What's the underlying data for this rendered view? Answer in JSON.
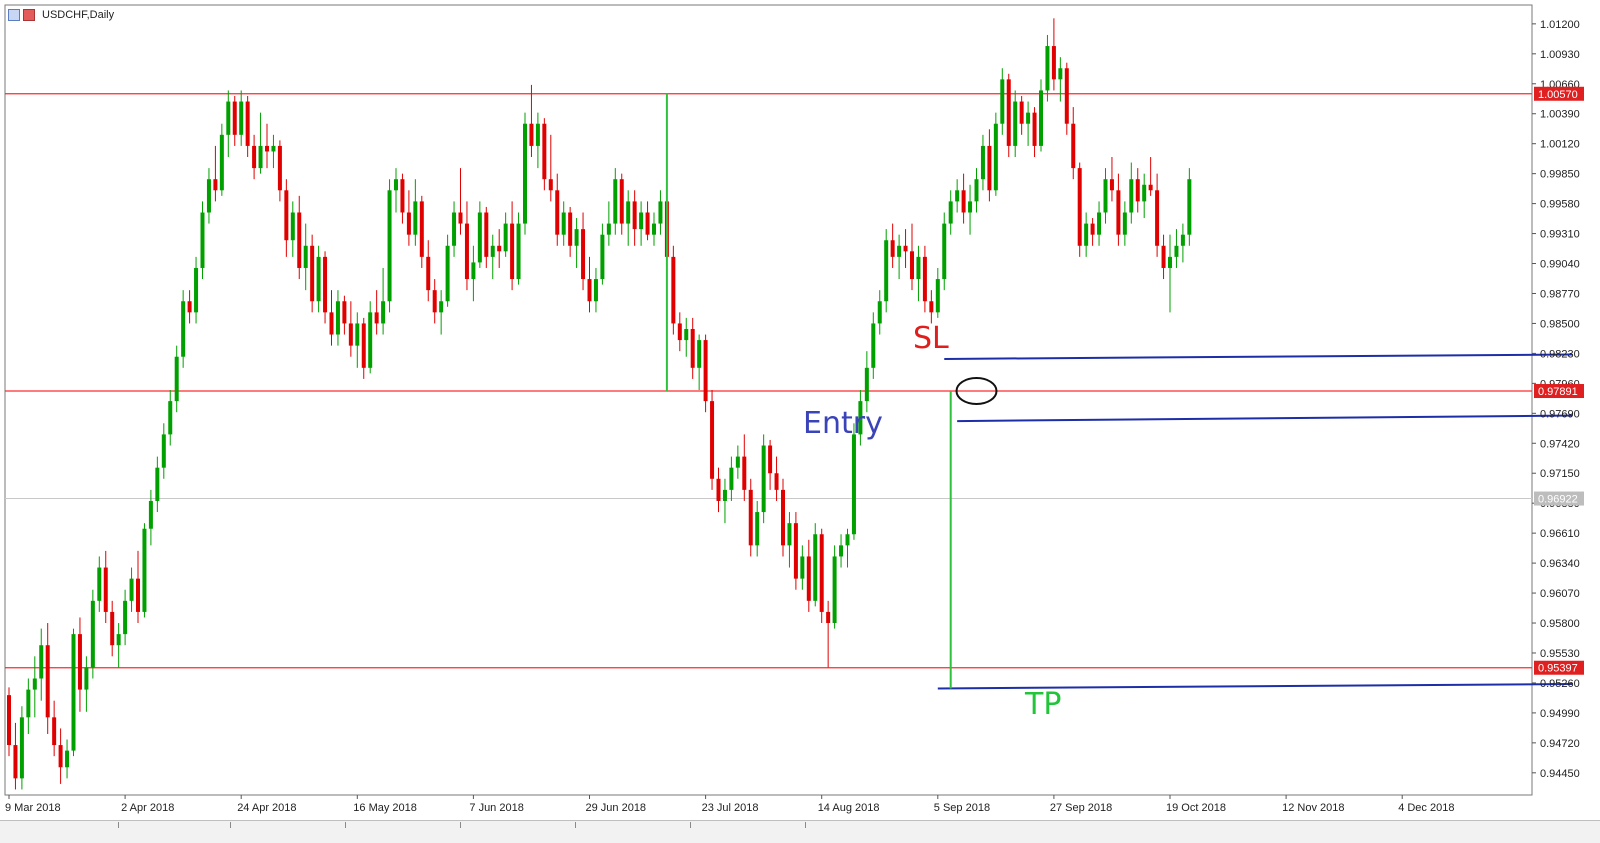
{
  "window": {
    "title": "USDCHF,Daily"
  },
  "icons": [
    "chart-icon",
    "bars-icon"
  ],
  "colors": {
    "bull": "#00a000",
    "bear": "#e00000",
    "level_line": "#ff2a2a",
    "trend_line": "#1c2ea8",
    "vline": "#2ec23c",
    "sl_text": "#e01e1e",
    "entry_text": "#3a44b8",
    "tp_text": "#22c43a"
  },
  "annotations": {
    "sl": "SL",
    "entry": "Entry",
    "tp": "TP"
  },
  "chart_data": {
    "type": "candlestick",
    "title": "USDCHF,Daily",
    "xlabel": "",
    "ylabel": "",
    "x_tick_labels": [
      "9 Mar 2018",
      "2 Apr 2018",
      "24 Apr 2018",
      "16 May 2018",
      "7 Jun 2018",
      "29 Jun 2018",
      "23 Jul 2018",
      "14 Aug 2018",
      "5 Sep 2018",
      "27 Sep 2018",
      "19 Oct 2018",
      "12 Nov 2018",
      "4 Dec 2018"
    ],
    "y_tick_labels": [
      "1.01200",
      "1.00930",
      "1.00660",
      "1.00390",
      "1.00120",
      "0.99850",
      "0.99580",
      "0.99310",
      "0.99040",
      "0.98770",
      "0.98500",
      "0.98230",
      "0.97960",
      "0.97690",
      "0.97420",
      "0.97150",
      "0.96880",
      "0.96610",
      "0.96340",
      "0.96070",
      "0.95800",
      "0.95530",
      "0.95260",
      "0.94990",
      "0.94720",
      "0.94450"
    ],
    "ylim": [
      0.9425,
      1.0137
    ],
    "price_labels": [
      "1.00570",
      "0.97891",
      "0.96922",
      "0.95397"
    ],
    "horizontal_levels": [
      1.0057,
      0.97891,
      0.95397
    ],
    "current_price": 0.96922,
    "grid": false,
    "legend": "none",
    "ohlc": [
      [
        0.9515,
        0.9522,
        0.946,
        0.947
      ],
      [
        0.947,
        0.949,
        0.943,
        0.944
      ],
      [
        0.944,
        0.9505,
        0.943,
        0.9495
      ],
      [
        0.9495,
        0.953,
        0.948,
        0.952
      ],
      [
        0.952,
        0.955,
        0.9495,
        0.953
      ],
      [
        0.953,
        0.9575,
        0.951,
        0.956
      ],
      [
        0.956,
        0.958,
        0.948,
        0.9495
      ],
      [
        0.9495,
        0.951,
        0.946,
        0.947
      ],
      [
        0.947,
        0.9485,
        0.9435,
        0.945
      ],
      [
        0.945,
        0.9475,
        0.944,
        0.9465
      ],
      [
        0.9465,
        0.9575,
        0.946,
        0.957
      ],
      [
        0.957,
        0.9585,
        0.95,
        0.952
      ],
      [
        0.952,
        0.955,
        0.95,
        0.954
      ],
      [
        0.954,
        0.961,
        0.953,
        0.96
      ],
      [
        0.96,
        0.964,
        0.959,
        0.963
      ],
      [
        0.963,
        0.9645,
        0.958,
        0.959
      ],
      [
        0.959,
        0.96,
        0.955,
        0.956
      ],
      [
        0.956,
        0.958,
        0.954,
        0.957
      ],
      [
        0.957,
        0.961,
        0.956,
        0.96
      ],
      [
        0.96,
        0.963,
        0.959,
        0.962
      ],
      [
        0.962,
        0.9645,
        0.958,
        0.959
      ],
      [
        0.959,
        0.967,
        0.9585,
        0.9665
      ],
      [
        0.9665,
        0.97,
        0.965,
        0.969
      ],
      [
        0.969,
        0.973,
        0.968,
        0.972
      ],
      [
        0.972,
        0.976,
        0.971,
        0.975
      ],
      [
        0.975,
        0.979,
        0.974,
        0.978
      ],
      [
        0.978,
        0.983,
        0.977,
        0.982
      ],
      [
        0.982,
        0.988,
        0.981,
        0.987
      ],
      [
        0.987,
        0.988,
        0.985,
        0.986
      ],
      [
        0.986,
        0.991,
        0.985,
        0.99
      ],
      [
        0.99,
        0.996,
        0.989,
        0.995
      ],
      [
        0.995,
        0.999,
        0.994,
        0.998
      ],
      [
        0.998,
        1.001,
        0.996,
        0.997
      ],
      [
        0.997,
        1.003,
        0.9965,
        1.002
      ],
      [
        1.002,
        1.006,
        1.0,
        1.005
      ],
      [
        1.005,
        1.0055,
        1.001,
        1.002
      ],
      [
        1.002,
        1.006,
        1.001,
        1.005
      ],
      [
        1.005,
        1.0055,
        1.0,
        1.001
      ],
      [
        1.001,
        1.002,
        0.998,
        0.999
      ],
      [
        0.999,
        1.004,
        0.9985,
        1.001
      ],
      [
        1.001,
        1.003,
        0.999,
        1.0005
      ],
      [
        1.0005,
        1.002,
        0.999,
        1.001
      ],
      [
        1.001,
        1.0015,
        0.996,
        0.997
      ],
      [
        0.997,
        0.998,
        0.991,
        0.9925
      ],
      [
        0.9925,
        0.996,
        0.991,
        0.995
      ],
      [
        0.995,
        0.9965,
        0.989,
        0.99
      ],
      [
        0.99,
        0.994,
        0.988,
        0.992
      ],
      [
        0.992,
        0.993,
        0.986,
        0.987
      ],
      [
        0.987,
        0.992,
        0.986,
        0.991
      ],
      [
        0.991,
        0.9915,
        0.985,
        0.986
      ],
      [
        0.986,
        0.988,
        0.983,
        0.984
      ],
      [
        0.984,
        0.988,
        0.983,
        0.987
      ],
      [
        0.987,
        0.9875,
        0.984,
        0.985
      ],
      [
        0.985,
        0.987,
        0.982,
        0.983
      ],
      [
        0.983,
        0.986,
        0.981,
        0.985
      ],
      [
        0.985,
        0.9855,
        0.98,
        0.981
      ],
      [
        0.981,
        0.987,
        0.9805,
        0.986
      ],
      [
        0.986,
        0.988,
        0.984,
        0.985
      ],
      [
        0.985,
        0.99,
        0.984,
        0.987
      ],
      [
        0.987,
        0.998,
        0.986,
        0.997
      ],
      [
        0.997,
        0.999,
        0.995,
        0.998
      ],
      [
        0.998,
        0.9985,
        0.994,
        0.995
      ],
      [
        0.995,
        0.997,
        0.992,
        0.993
      ],
      [
        0.993,
        0.998,
        0.992,
        0.996
      ],
      [
        0.996,
        0.9965,
        0.99,
        0.991
      ],
      [
        0.991,
        0.9925,
        0.987,
        0.988
      ],
      [
        0.988,
        0.989,
        0.985,
        0.986
      ],
      [
        0.986,
        0.988,
        0.984,
        0.987
      ],
      [
        0.987,
        0.993,
        0.9865,
        0.992
      ],
      [
        0.992,
        0.996,
        0.991,
        0.995
      ],
      [
        0.995,
        0.999,
        0.993,
        0.994
      ],
      [
        0.994,
        0.996,
        0.988,
        0.989
      ],
      [
        0.989,
        0.992,
        0.987,
        0.9905
      ],
      [
        0.9905,
        0.996,
        0.99,
        0.995
      ],
      [
        0.995,
        0.9955,
        0.99,
        0.991
      ],
      [
        0.991,
        0.993,
        0.989,
        0.992
      ],
      [
        0.992,
        0.9935,
        0.99,
        0.9915
      ],
      [
        0.9915,
        0.995,
        0.991,
        0.994
      ],
      [
        0.994,
        0.996,
        0.988,
        0.989
      ],
      [
        0.989,
        0.995,
        0.9885,
        0.994
      ],
      [
        0.994,
        1.004,
        0.993,
        1.003
      ],
      [
        1.003,
        1.0065,
        1.0,
        1.001
      ],
      [
        1.001,
        1.004,
        0.999,
        1.003
      ],
      [
        1.003,
        1.0035,
        0.997,
        0.998
      ],
      [
        0.998,
        1.002,
        0.996,
        0.997
      ],
      [
        0.997,
        0.9985,
        0.992,
        0.993
      ],
      [
        0.993,
        0.996,
        0.992,
        0.995
      ],
      [
        0.995,
        0.9955,
        0.991,
        0.992
      ],
      [
        0.992,
        0.9945,
        0.99,
        0.9935
      ],
      [
        0.9935,
        0.995,
        0.988,
        0.989
      ],
      [
        0.989,
        0.991,
        0.986,
        0.987
      ],
      [
        0.987,
        0.99,
        0.986,
        0.989
      ],
      [
        0.989,
        0.994,
        0.9885,
        0.993
      ],
      [
        0.993,
        0.996,
        0.992,
        0.994
      ],
      [
        0.994,
        0.999,
        0.993,
        0.998
      ],
      [
        0.998,
        0.9985,
        0.993,
        0.994
      ],
      [
        0.994,
        0.997,
        0.992,
        0.996
      ],
      [
        0.996,
        0.997,
        0.992,
        0.9935
      ],
      [
        0.9935,
        0.996,
        0.992,
        0.995
      ],
      [
        0.995,
        0.996,
        0.9925,
        0.993
      ],
      [
        0.993,
        0.995,
        0.992,
        0.994
      ],
      [
        0.994,
        0.997,
        0.993,
        0.996
      ],
      [
        0.996,
        0.998,
        0.99,
        0.991
      ],
      [
        0.991,
        0.992,
        0.984,
        0.985
      ],
      [
        0.985,
        0.986,
        0.9825,
        0.9835
      ],
      [
        0.9835,
        0.9855,
        0.982,
        0.9845
      ],
      [
        0.9845,
        0.9855,
        0.98,
        0.981
      ],
      [
        0.981,
        0.984,
        0.979,
        0.9835
      ],
      [
        0.9835,
        0.984,
        0.977,
        0.978
      ],
      [
        0.978,
        0.979,
        0.97,
        0.971
      ],
      [
        0.971,
        0.972,
        0.968,
        0.969
      ],
      [
        0.969,
        0.971,
        0.967,
        0.97
      ],
      [
        0.97,
        0.973,
        0.969,
        0.972
      ],
      [
        0.972,
        0.974,
        0.971,
        0.973
      ],
      [
        0.973,
        0.975,
        0.969,
        0.97
      ],
      [
        0.97,
        0.971,
        0.964,
        0.965
      ],
      [
        0.965,
        0.969,
        0.964,
        0.968
      ],
      [
        0.968,
        0.975,
        0.967,
        0.974
      ],
      [
        0.974,
        0.9745,
        0.97,
        0.9715
      ],
      [
        0.9715,
        0.973,
        0.969,
        0.97
      ],
      [
        0.97,
        0.971,
        0.964,
        0.965
      ],
      [
        0.965,
        0.968,
        0.963,
        0.967
      ],
      [
        0.967,
        0.968,
        0.961,
        0.962
      ],
      [
        0.962,
        0.965,
        0.961,
        0.964
      ],
      [
        0.964,
        0.9655,
        0.959,
        0.96
      ],
      [
        0.96,
        0.967,
        0.9595,
        0.966
      ],
      [
        0.966,
        0.9665,
        0.958,
        0.959
      ],
      [
        0.959,
        0.96,
        0.954,
        0.958
      ],
      [
        0.958,
        0.965,
        0.9575,
        0.964
      ],
      [
        0.964,
        0.966,
        0.963,
        0.965
      ],
      [
        0.965,
        0.9665,
        0.963,
        0.966
      ],
      [
        0.966,
        0.976,
        0.9655,
        0.975
      ],
      [
        0.975,
        0.979,
        0.974,
        0.978
      ],
      [
        0.978,
        0.9825,
        0.977,
        0.981
      ],
      [
        0.981,
        0.986,
        0.98,
        0.985
      ],
      [
        0.985,
        0.988,
        0.984,
        0.987
      ],
      [
        0.987,
        0.9935,
        0.986,
        0.9925
      ],
      [
        0.9925,
        0.994,
        0.99,
        0.991
      ],
      [
        0.991,
        0.993,
        0.989,
        0.992
      ],
      [
        0.992,
        0.9935,
        0.99,
        0.9915
      ],
      [
        0.9915,
        0.994,
        0.988,
        0.989
      ],
      [
        0.989,
        0.992,
        0.987,
        0.991
      ],
      [
        0.991,
        0.992,
        0.986,
        0.987
      ],
      [
        0.987,
        0.988,
        0.985,
        0.986
      ],
      [
        0.986,
        0.99,
        0.9855,
        0.989
      ],
      [
        0.989,
        0.995,
        0.988,
        0.994
      ],
      [
        0.994,
        0.997,
        0.993,
        0.996
      ],
      [
        0.996,
        0.998,
        0.995,
        0.997
      ],
      [
        0.997,
        0.9985,
        0.994,
        0.995
      ],
      [
        0.995,
        0.9975,
        0.993,
        0.996
      ],
      [
        0.996,
        0.999,
        0.995,
        0.998
      ],
      [
        0.998,
        1.002,
        0.997,
        1.001
      ],
      [
        1.001,
        1.0025,
        0.996,
        0.997
      ],
      [
        0.997,
        1.004,
        0.9965,
        1.003
      ],
      [
        1.003,
        1.008,
        1.002,
        1.007
      ],
      [
        1.007,
        1.0075,
        1.0,
        1.001
      ],
      [
        1.001,
        1.006,
        1.0,
        1.005
      ],
      [
        1.005,
        1.0055,
        1.002,
        1.003
      ],
      [
        1.003,
        1.005,
        1.001,
        1.004
      ],
      [
        1.004,
        1.0045,
        1.0,
        1.001
      ],
      [
        1.001,
        1.007,
        1.0005,
        1.006
      ],
      [
        1.006,
        1.011,
        1.005,
        1.01
      ],
      [
        1.01,
        1.0125,
        1.006,
        1.007
      ],
      [
        1.007,
        1.009,
        1.005,
        1.008
      ],
      [
        1.008,
        1.0085,
        1.002,
        1.003
      ],
      [
        1.003,
        1.0045,
        0.998,
        0.999
      ],
      [
        0.999,
        0.9995,
        0.991,
        0.992
      ],
      [
        0.992,
        0.995,
        0.991,
        0.994
      ],
      [
        0.994,
        0.9945,
        0.992,
        0.993
      ],
      [
        0.993,
        0.996,
        0.992,
        0.995
      ],
      [
        0.995,
        0.999,
        0.994,
        0.998
      ],
      [
        0.998,
        1.0,
        0.996,
        0.997
      ],
      [
        0.997,
        0.9985,
        0.992,
        0.993
      ],
      [
        0.993,
        0.996,
        0.992,
        0.995
      ],
      [
        0.995,
        0.9995,
        0.994,
        0.998
      ],
      [
        0.998,
        0.999,
        0.995,
        0.996
      ],
      [
        0.996,
        0.9985,
        0.9945,
        0.9975
      ],
      [
        0.9975,
        1.0,
        0.9965,
        0.997
      ],
      [
        0.997,
        0.9985,
        0.991,
        0.992
      ],
      [
        0.992,
        0.993,
        0.989,
        0.99
      ],
      [
        0.99,
        0.993,
        0.986,
        0.991
      ],
      [
        0.991,
        0.9935,
        0.99,
        0.992
      ],
      [
        0.992,
        0.994,
        0.9905,
        0.993
      ],
      [
        0.993,
        0.999,
        0.992,
        0.998
      ]
    ],
    "drawn_objects": [
      {
        "kind": "trend_line",
        "label": "SL",
        "from_bar": 145,
        "to_bar": 245,
        "from_price": 0.9818,
        "to_price": 0.9822
      },
      {
        "kind": "trend_line",
        "label": "Entry",
        "from_bar": 147,
        "to_bar": 245,
        "from_price": 0.9762,
        "to_price": 0.9767
      },
      {
        "kind": "trend_line",
        "label": "TP",
        "from_bar": 144,
        "to_bar": 260,
        "from_price": 0.9521,
        "to_price": 0.9525
      },
      {
        "kind": "vertical_line",
        "bar": 102,
        "from_price": 1.0057,
        "to_price": 0.97891
      },
      {
        "kind": "vertical_line",
        "bar": 146,
        "from_price": 0.97891,
        "to_price": 0.9521
      },
      {
        "kind": "ellipse_marker",
        "bar": 150,
        "price": 0.97891
      }
    ]
  }
}
